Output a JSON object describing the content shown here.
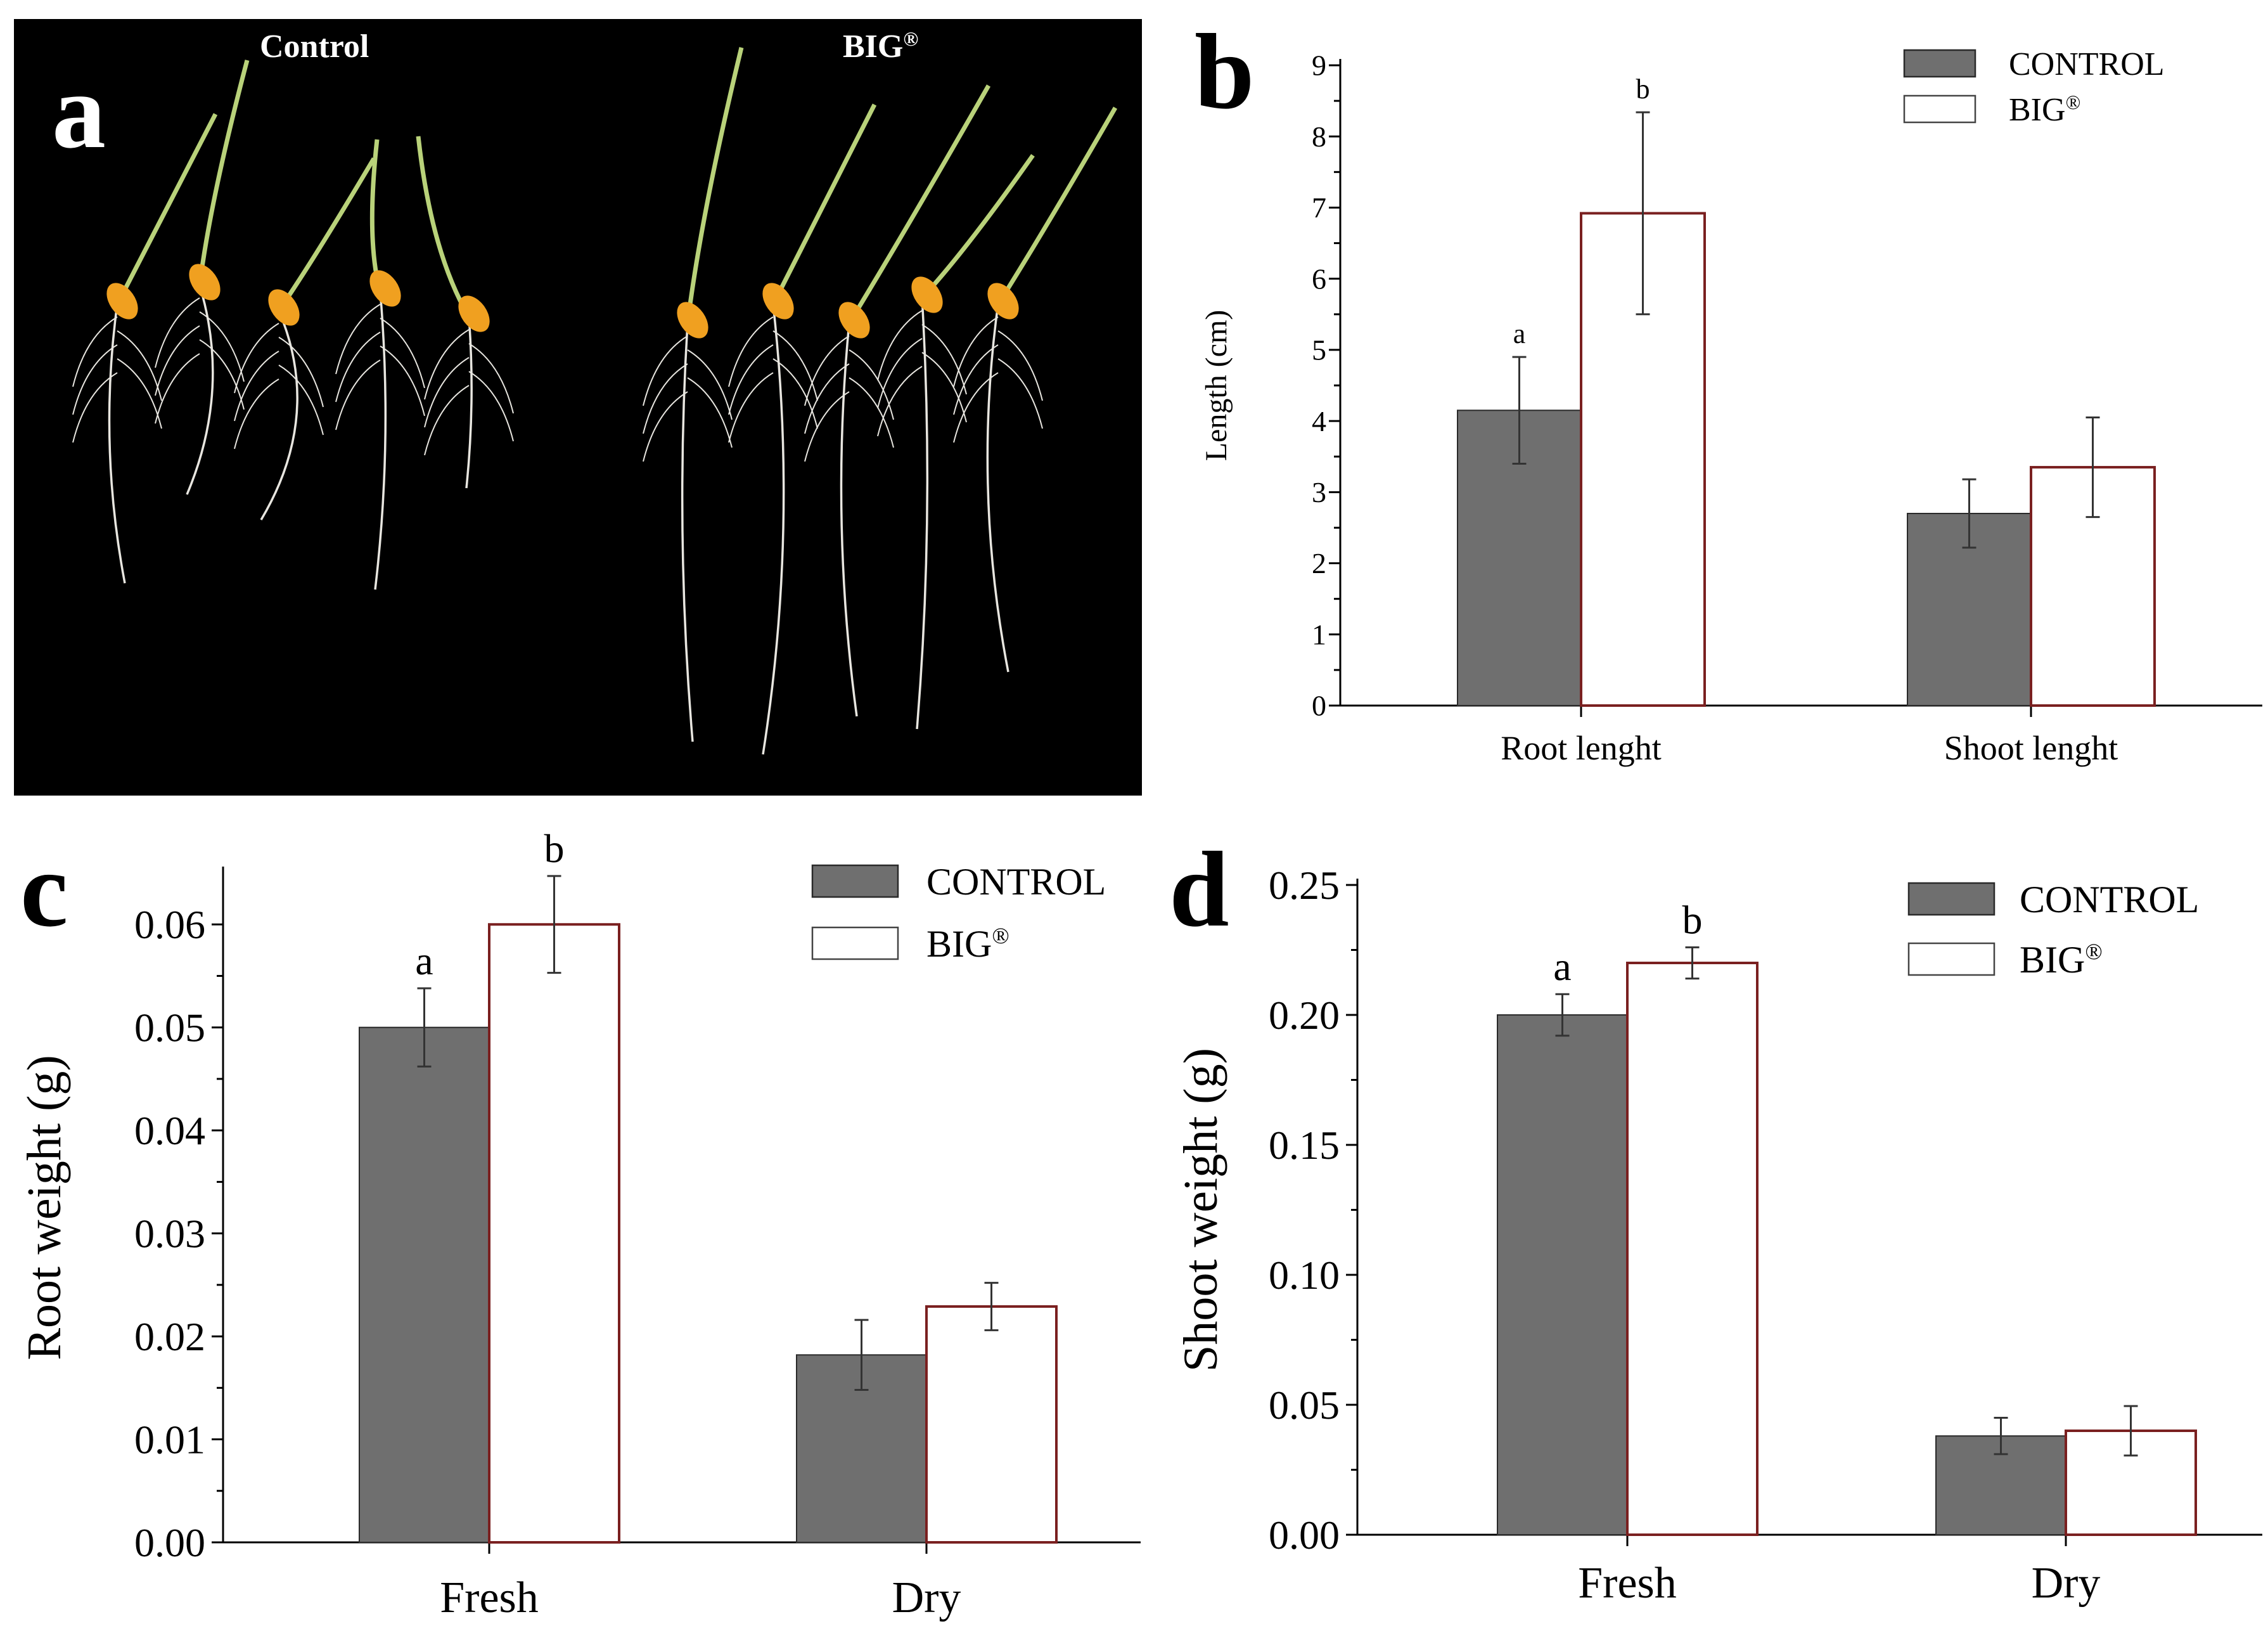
{
  "colors": {
    "control_fill": "#6f6f6f",
    "big_fill": "#ffffff",
    "big_stroke": "#7a2020",
    "photo_bg": "#000000",
    "root": "#e8e6e0",
    "shoot": "#b9d27a",
    "seed": "#f0a020"
  },
  "panels": {
    "a": {
      "letter": "a",
      "label_control": "Control",
      "label_big": "BIG",
      "label_big_sup": "®"
    }
  },
  "chart_data": [
    {
      "id": "b",
      "letter": "b",
      "type": "bar",
      "title": "",
      "xlabel": "",
      "ylabel": "Length (cm)",
      "categories": [
        "Root lenght",
        "Shoot lenght"
      ],
      "series": [
        {
          "name": "CONTROL",
          "name_sup": "",
          "values": [
            4.15,
            2.7
          ],
          "errors": [
            0.75,
            0.48
          ],
          "letters": [
            "a",
            ""
          ]
        },
        {
          "name": "BIG",
          "name_sup": "®",
          "values": [
            6.92,
            3.35
          ],
          "errors": [
            1.42,
            0.7
          ],
          "letters": [
            "b",
            ""
          ]
        }
      ],
      "ylim": [
        0,
        9
      ],
      "yticks": [
        "0",
        "1",
        "2",
        "3",
        "4",
        "5",
        "6",
        "7",
        "8",
        "9"
      ],
      "legend_position": "top-right"
    },
    {
      "id": "c",
      "letter": "c",
      "type": "bar",
      "title": "",
      "xlabel": "",
      "ylabel": "Root weight (g)",
      "categories": [
        "Fresh",
        "Dry"
      ],
      "series": [
        {
          "name": "CONTROL",
          "name_sup": "",
          "values": [
            0.05,
            0.0182
          ],
          "errors": [
            0.0038,
            0.0034
          ],
          "letters": [
            "a",
            ""
          ]
        },
        {
          "name": "BIG",
          "name_sup": "®",
          "values": [
            0.06,
            0.0229
          ],
          "errors": [
            0.0047,
            0.0023
          ],
          "letters": [
            "b",
            ""
          ]
        }
      ],
      "ylim": [
        0,
        0.065
      ],
      "yticks": [
        "0.00",
        "0.01",
        "0.02",
        "0.03",
        "0.04",
        "0.05",
        "0.06"
      ],
      "legend_position": "top-right"
    },
    {
      "id": "d",
      "letter": "d",
      "type": "bar",
      "title": "",
      "xlabel": "",
      "ylabel": "Shoot weight (g)",
      "categories": [
        "Fresh",
        "Dry"
      ],
      "series": [
        {
          "name": "CONTROL",
          "name_sup": "",
          "values": [
            0.2,
            0.038
          ],
          "errors": [
            0.008,
            0.007
          ],
          "letters": [
            "a",
            ""
          ]
        },
        {
          "name": "BIG",
          "name_sup": "®",
          "values": [
            0.22,
            0.04
          ],
          "errors": [
            0.006,
            0.0095
          ],
          "letters": [
            "b",
            ""
          ]
        }
      ],
      "ylim": [
        0,
        0.25
      ],
      "yticks": [
        "0.00",
        "0.05",
        "0.10",
        "0.15",
        "0.20",
        "0.25"
      ],
      "legend_position": "top-right"
    }
  ]
}
